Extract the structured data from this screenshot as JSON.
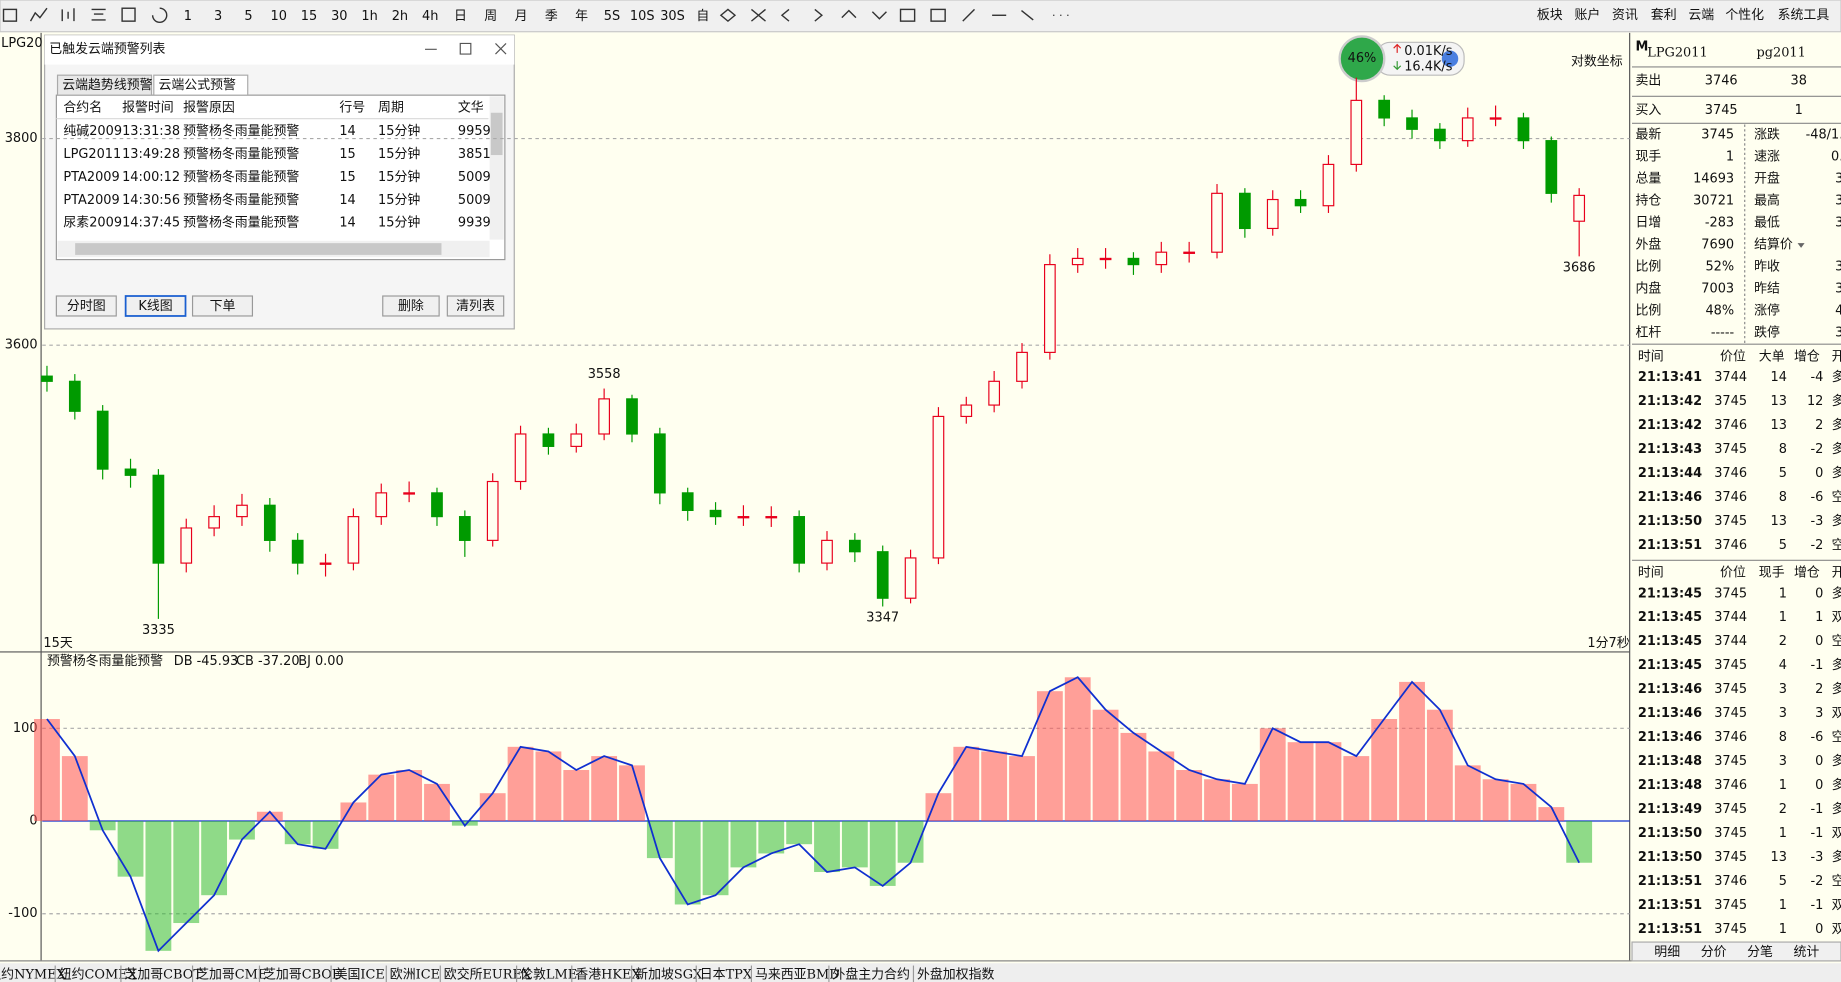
{
  "toolbar": {
    "periods": [
      "1",
      "3",
      "5",
      "10",
      "15",
      "30",
      "1h",
      "2h",
      "4h",
      "日",
      "周",
      "月",
      "季",
      "年",
      "5S",
      "10S",
      "30S",
      "自"
    ],
    "menu": [
      "板块",
      "账户",
      "资讯",
      "套利",
      "云端",
      "个性化",
      "系统工具"
    ]
  },
  "chart": {
    "symbol_tag": "LPG20",
    "period_label": "15天",
    "time_label": "1分7秒",
    "scale_mode": "对数坐标",
    "ylim": [
      3303,
      3883
    ],
    "yticks": [
      3600,
      3800
    ],
    "open": [
      3570,
      3565,
      3536,
      3480,
      3474,
      3389,
      3423,
      3434,
      3445,
      3411,
      3389,
      3389,
      3434,
      3457,
      3457,
      3434,
      3411,
      3468,
      3514,
      3502,
      3514,
      3548,
      3514,
      3457,
      3440,
      3434,
      3434,
      3434,
      3389,
      3411,
      3400,
      3355,
      3394,
      3531,
      3542,
      3565,
      3593,
      3678,
      3684,
      3684,
      3678,
      3690,
      3690,
      3747,
      3713,
      3741,
      3735,
      3775,
      3837,
      3820,
      3809,
      3798,
      3820,
      3820,
      3798,
      3720
    ],
    "high": [
      3580,
      3572,
      3542,
      3490,
      3480,
      3432,
      3445,
      3456,
      3452,
      3418,
      3398,
      3442,
      3466,
      3468,
      3462,
      3440,
      3476,
      3522,
      3520,
      3524,
      3558,
      3552,
      3520,
      3462,
      3448,
      3445,
      3444,
      3440,
      3420,
      3418,
      3406,
      3402,
      3540,
      3550,
      3575,
      3602,
      3688,
      3694,
      3694,
      3690,
      3700,
      3700,
      3756,
      3752,
      3750,
      3750,
      3784,
      3859,
      3842,
      3828,
      3815,
      3830,
      3832,
      3825,
      3802,
      3752
    ],
    "low": [
      3555,
      3528,
      3470,
      3462,
      3335,
      3380,
      3415,
      3425,
      3400,
      3378,
      3376,
      3382,
      3426,
      3448,
      3425,
      3395,
      3405,
      3460,
      3494,
      3496,
      3508,
      3506,
      3446,
      3430,
      3426,
      3425,
      3424,
      3380,
      3382,
      3390,
      3347,
      3350,
      3388,
      3524,
      3535,
      3558,
      3586,
      3670,
      3674,
      3668,
      3670,
      3680,
      3684,
      3704,
      3706,
      3728,
      3728,
      3768,
      3812,
      3800,
      3790,
      3792,
      3812,
      3790,
      3738,
      3686
    ],
    "close": [
      3565,
      3536,
      3480,
      3474,
      3389,
      3423,
      3434,
      3445,
      3411,
      3389,
      3389,
      3434,
      3457,
      3457,
      3434,
      3411,
      3468,
      3514,
      3502,
      3514,
      3548,
      3514,
      3457,
      3440,
      3434,
      3434,
      3434,
      3389,
      3411,
      3400,
      3355,
      3394,
      3531,
      3542,
      3565,
      3593,
      3678,
      3684,
      3684,
      3678,
      3690,
      3690,
      3747,
      3713,
      3741,
      3735,
      3775,
      3837,
      3820,
      3809,
      3798,
      3820,
      3820,
      3798,
      3747,
      3745
    ],
    "up_color": "#e8001c",
    "down_color": "#009a00",
    "grid": true
  },
  "indicator": {
    "name": "预警杨冬雨量能预警",
    "db": "DB -45.93",
    "cb": "CB -37.20",
    "bj": "BJ 0.00",
    "ylim": [
      -147,
      157
    ],
    "yticks": [
      -100,
      0,
      100
    ],
    "values": [
      110,
      70,
      -10,
      -60,
      -140,
      -110,
      -80,
      -20,
      10,
      -25,
      -30,
      20,
      50,
      55,
      40,
      -5,
      30,
      80,
      75,
      55,
      70,
      60,
      -40,
      -90,
      -80,
      -50,
      -35,
      -25,
      -55,
      -50,
      -70,
      -45,
      30,
      80,
      75,
      70,
      140,
      155,
      120,
      95,
      75,
      55,
      45,
      40,
      100,
      85,
      85,
      70,
      110,
      150,
      120,
      60,
      45,
      40,
      15,
      -45
    ],
    "pos_color": "#ff5050",
    "neg_color": "#33bb33",
    "line_color": "#1030d0"
  },
  "speed_widget": {
    "percent": "46%",
    "up": "0.01K/s",
    "down": "16.4K/s"
  },
  "dialog": {
    "title": "已触发云端预警列表",
    "tabs": [
      "云端趋势线预警",
      "云端公式预警"
    ],
    "headers": [
      "合约名",
      "报警时间",
      "报警原因",
      "行号",
      "周期",
      "文华"
    ],
    "rows": [
      [
        "纯碱2009",
        "13:31:38",
        "预警杨冬雨量能预警",
        14,
        "15分钟",
        9959
      ],
      [
        "LPG2011",
        "13:49:28",
        "预警杨冬雨量能预警",
        15,
        "15分钟",
        3851
      ],
      [
        "PTA2009",
        "14:00:12",
        "预警杨冬雨量能预警",
        15,
        "15分钟",
        5009
      ],
      [
        "PTA2009",
        "14:30:56",
        "预警杨冬雨量能预警",
        14,
        "15分钟",
        5009
      ],
      [
        "尿素2009",
        "14:37:45",
        "预警杨冬雨量能预警",
        14,
        "15分钟",
        9939
      ]
    ],
    "buttons_left": [
      "分时图",
      "K线图",
      "下单"
    ],
    "buttons_right": [
      "删除",
      "清列表"
    ]
  },
  "quote": {
    "badge": "M",
    "symbol": "LPG2011",
    "code": "pg2011",
    "ask_label": "卖出",
    "ask": 3746,
    "ask_vol": 38,
    "bid_label": "买入",
    "bid": 3745,
    "bid_vol": 1,
    "rows": [
      [
        "最新",
        3745,
        "涨跌",
        "-48/1."
      ],
      [
        "现手",
        1,
        "速涨",
        "0."
      ],
      [
        "总量",
        14693,
        "开盘",
        "3"
      ],
      [
        "持仓",
        30721,
        "最高",
        "3"
      ],
      [
        "日增",
        -283,
        "最低",
        "3"
      ],
      [
        "外盘",
        7690,
        "结算价",
        ""
      ],
      [
        "比例",
        "52%",
        "昨收",
        "3"
      ],
      [
        "内盘",
        7003,
        "昨结",
        "3"
      ],
      [
        "比例",
        "48%",
        "涨停",
        "4"
      ],
      [
        "杠杆",
        "-----",
        "跌停",
        "3"
      ]
    ]
  },
  "ticks_big": {
    "headers": [
      "时间",
      "价位",
      "大单",
      "增仓",
      "开"
    ],
    "rows": [
      [
        "21:13:41",
        3744,
        14,
        -4,
        "多"
      ],
      [
        "21:13:42",
        3745,
        13,
        12,
        "多"
      ],
      [
        "21:13:42",
        3746,
        13,
        2,
        "多"
      ],
      [
        "21:13:43",
        3745,
        8,
        -2,
        "多"
      ],
      [
        "21:13:44",
        3746,
        5,
        0,
        "多"
      ],
      [
        "21:13:46",
        3746,
        8,
        -6,
        "空"
      ],
      [
        "21:13:50",
        3745,
        13,
        -3,
        "多"
      ],
      [
        "21:13:51",
        3746,
        5,
        -2,
        "空"
      ]
    ]
  },
  "ticks_all": {
    "headers": [
      "时间",
      "价位",
      "现手",
      "增仓",
      "开"
    ],
    "rows": [
      [
        "21:13:45",
        3745,
        1,
        0,
        "多"
      ],
      [
        "21:13:45",
        3744,
        1,
        1,
        "双"
      ],
      [
        "21:13:45",
        3744,
        2,
        0,
        "空"
      ],
      [
        "21:13:45",
        3745,
        4,
        -1,
        "多"
      ],
      [
        "21:13:46",
        3745,
        3,
        2,
        "多"
      ],
      [
        "21:13:46",
        3745,
        3,
        3,
        "双"
      ],
      [
        "21:13:46",
        3746,
        8,
        -6,
        "空"
      ],
      [
        "21:13:48",
        3745,
        3,
        0,
        "多"
      ],
      [
        "21:13:48",
        3746,
        1,
        0,
        "多"
      ],
      [
        "21:13:49",
        3745,
        2,
        -1,
        "多"
      ],
      [
        "21:13:50",
        3745,
        1,
        -1,
        "双"
      ],
      [
        "21:13:50",
        3745,
        13,
        -3,
        "多"
      ],
      [
        "21:13:51",
        3746,
        5,
        -2,
        "空"
      ],
      [
        "21:13:51",
        3745,
        1,
        -1,
        "双"
      ],
      [
        "21:13:51",
        3745,
        1,
        0,
        "双"
      ]
    ]
  },
  "panel_tabs": [
    "明细",
    "分价",
    "分笔",
    "统计"
  ],
  "exchange_tabs": [
    "纽约NYMEX",
    "纽约COMEX",
    "芝加哥CBOT",
    "芝加哥CME",
    "芝加哥CBOE",
    "美国ICE",
    "欧洲ICE",
    "欧交所EUREX",
    "伦敦LME",
    "香港HKEX",
    "新加坡SGX",
    "日本TPX",
    "马来西亚BMD",
    "外盘主力合约",
    "外盘加权指数"
  ]
}
